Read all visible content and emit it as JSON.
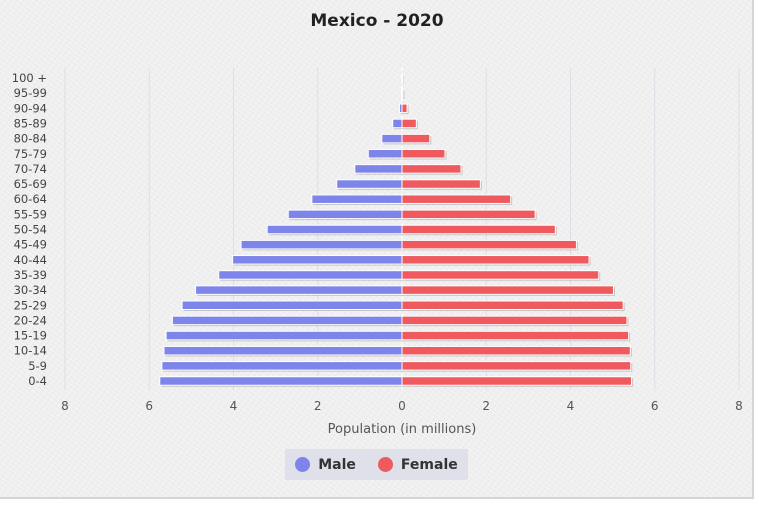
{
  "chart_data": {
    "type": "bar",
    "orientation": "horizontal-pyramid",
    "title": "Mexico - 2020",
    "xlabel": "Population (in millions)",
    "ylabel": "",
    "xlim": [
      -8,
      8
    ],
    "xticks": [
      -8,
      -6,
      -4,
      -2,
      0,
      2,
      4,
      6,
      8
    ],
    "xtick_labels": [
      "8",
      "6",
      "4",
      "2",
      "0",
      "2",
      "4",
      "6",
      "8"
    ],
    "categories": [
      "100 +",
      "95-99",
      "90-94",
      "85-89",
      "80-84",
      "75-79",
      "70-74",
      "65-69",
      "60-64",
      "55-59",
      "50-54",
      "45-49",
      "40-44",
      "35-39",
      "30-34",
      "25-29",
      "20-24",
      "15-19",
      "10-14",
      "5-9",
      "0-4"
    ],
    "series": [
      {
        "name": "Male",
        "color": "#7e85ea",
        "values": [
          0.0,
          0.01,
          0.06,
          0.22,
          0.48,
          0.8,
          1.12,
          1.55,
          2.14,
          2.7,
          3.2,
          3.82,
          4.02,
          4.35,
          4.9,
          5.22,
          5.45,
          5.6,
          5.65,
          5.7,
          5.75
        ]
      },
      {
        "name": "Female",
        "color": "#ef5a5f",
        "values": [
          0.01,
          0.02,
          0.12,
          0.34,
          0.66,
          1.02,
          1.4,
          1.86,
          2.58,
          3.16,
          3.64,
          4.14,
          4.44,
          4.67,
          5.02,
          5.25,
          5.34,
          5.38,
          5.42,
          5.43,
          5.45
        ]
      }
    ],
    "grid": true,
    "legend_position": "bottom"
  },
  "legend": {
    "items": [
      {
        "label": "Male",
        "color": "#7e85ea"
      },
      {
        "label": "Female",
        "color": "#ef5a5f"
      }
    ]
  }
}
